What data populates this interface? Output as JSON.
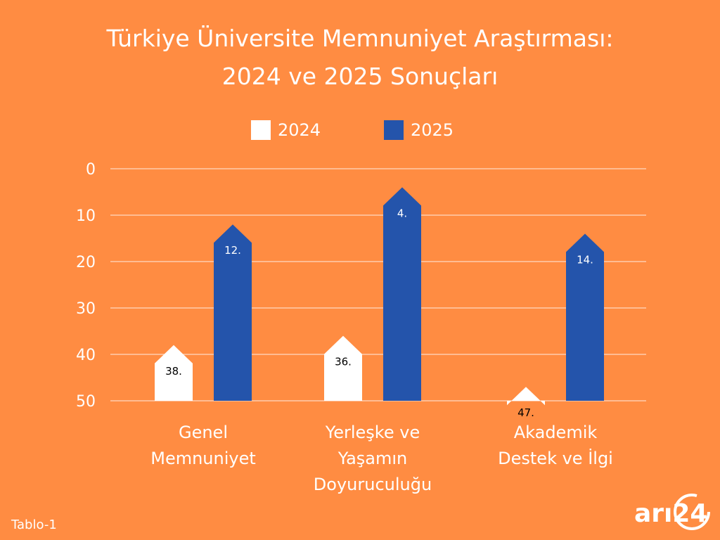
{
  "title_lines": [
    "Türkiye Üniversite Memnuniyet Araştırması:",
    "2024 ve 2025 Sonuçları"
  ],
  "footer_note": "Tablo-1",
  "logo_text": "arı24",
  "colors": {
    "background": "#FF8C42",
    "series_2024": "#FFFFFF",
    "series_2025": "#2454AB",
    "gridline": "#FFFFFF",
    "text": "#FFFFFF"
  },
  "chart_data": {
    "type": "bar",
    "title": "Türkiye Üniversite Memnuniyet Araştırması: 2024 ve 2025 Sonuçları",
    "categories": [
      [
        "Genel",
        "Memnuniyet"
      ],
      [
        "Yerleşke ve",
        "Yaşamın",
        "Doyuruculuğu"
      ],
      [
        "Akademik",
        "Destek ve İlgi"
      ]
    ],
    "series": [
      {
        "name": "2024",
        "values": [
          38,
          36,
          47
        ],
        "labels": [
          "38.",
          "36.",
          "47."
        ]
      },
      {
        "name": "2025",
        "values": [
          12,
          4,
          14
        ],
        "labels": [
          "12.",
          "4.",
          "14."
        ]
      }
    ],
    "y_axis": {
      "ticks": [
        0,
        10,
        20,
        30,
        40,
        50
      ],
      "ylim": [
        0,
        50
      ],
      "inverted": true
    },
    "grid": true,
    "legend_position": "top-center",
    "bar_shape": "arrow-pointed"
  }
}
